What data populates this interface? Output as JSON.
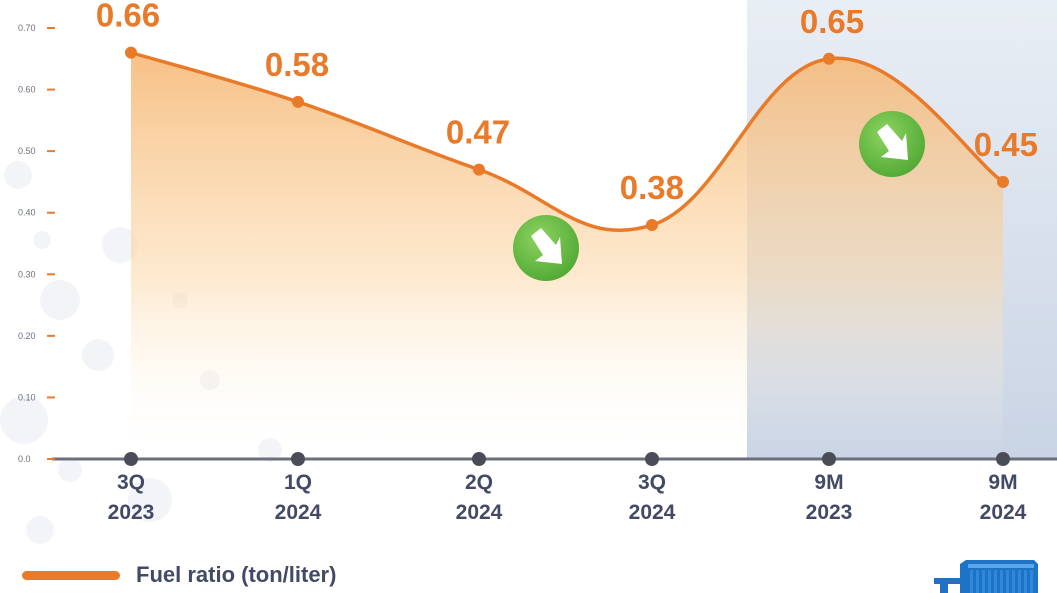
{
  "chart_data": {
    "type": "area",
    "categories": [
      [
        "3Q",
        "2023"
      ],
      [
        "1Q",
        "2024"
      ],
      [
        "2Q",
        "2024"
      ],
      [
        "3Q",
        "2024"
      ],
      [
        "9M",
        "2023"
      ],
      [
        "9M",
        "2024"
      ]
    ],
    "series": [
      {
        "name": "Fuel ratio (ton/liter)",
        "values": [
          0.66,
          0.58,
          0.47,
          0.38,
          0.65,
          0.45
        ],
        "data_labels": [
          "0.66",
          "0.58",
          "0.47",
          "0.38",
          "0.65",
          "0.45"
        ],
        "color": "#e87a2a"
      }
    ],
    "ylim": [
      0,
      0.7
    ],
    "yticks": [
      "0.0",
      "0.10",
      "0.20",
      "0.30",
      "0.40",
      "0.50",
      "0.60",
      "0.70"
    ],
    "highlighted_categories": [
      4,
      5
    ],
    "trend_markers": [
      {
        "between": [
          2,
          3
        ],
        "direction": "down"
      },
      {
        "between": [
          4,
          5
        ],
        "direction": "down"
      }
    ],
    "grid": false,
    "legend": "bottom-left"
  },
  "colors": {
    "line": "#e87a2a",
    "label": "#e87a2a",
    "axis": "#6b6f7c",
    "tick_dash": "#e87a2a",
    "category": "#424a66",
    "highlight": "#cdd7e6",
    "badge": "#6cc04a"
  },
  "legend": {
    "label": "Fuel ratio (ton/liter)"
  },
  "decorations": {
    "trend_icon": "down-right-arrow-badge",
    "corner_icon": "cargo-ship-icon"
  }
}
